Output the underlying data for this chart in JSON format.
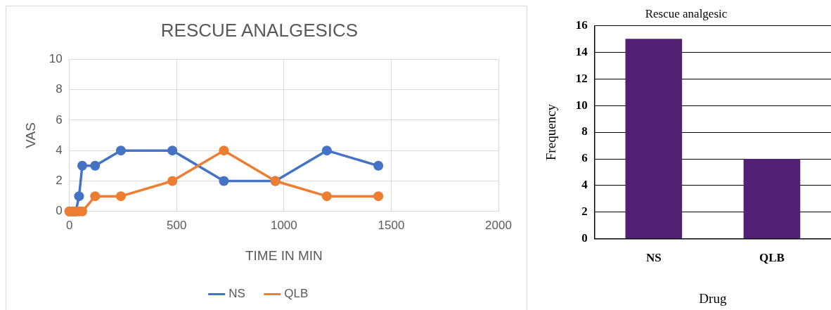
{
  "chart_data": [
    {
      "type": "line",
      "title": "RESCUE ANALGESICS",
      "xlabel": "TIME IN MIN",
      "ylabel": "VAS",
      "x": [
        0,
        15,
        30,
        45,
        60,
        120,
        240,
        480,
        720,
        960,
        1200,
        1440
      ],
      "series": [
        {
          "name": "NS",
          "color": "#4472c4",
          "values": [
            0,
            0,
            0,
            1,
            3,
            3,
            4,
            4,
            2,
            2,
            4,
            3
          ]
        },
        {
          "name": "QLB",
          "color": "#ed7d31",
          "values": [
            0,
            0,
            0,
            0,
            0,
            1,
            1,
            2,
            4,
            2,
            1,
            1
          ]
        }
      ],
      "xlim": [
        0,
        2000
      ],
      "xticks": [
        0,
        500,
        1000,
        1500,
        2000
      ],
      "ylim": [
        0,
        10
      ],
      "yticks": [
        0,
        2,
        4,
        6,
        8,
        10
      ],
      "grid": true,
      "legend": "bottom",
      "marker": "circle",
      "line_style": "solid"
    },
    {
      "type": "bar",
      "title": "Rescue analgesic",
      "xlabel": "Drug",
      "ylabel": "Frequency",
      "categories": [
        "NS",
        "QLB"
      ],
      "values": [
        15,
        6
      ],
      "color": "#522173",
      "ylim": [
        0,
        16
      ],
      "yticks": [
        0,
        2,
        4,
        6,
        8,
        10,
        12,
        14,
        16
      ],
      "grid": "y",
      "legend": false
    }
  ]
}
